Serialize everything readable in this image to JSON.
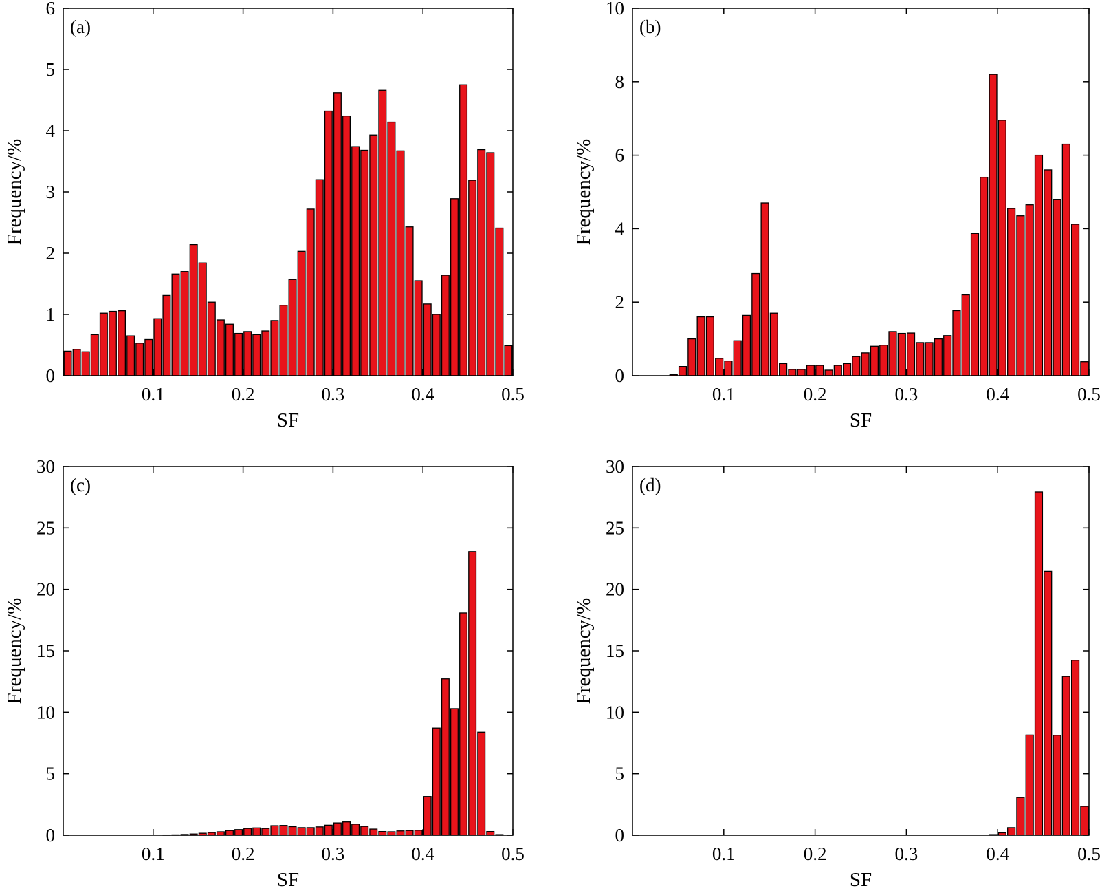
{
  "colors": {
    "bar_fill": "#e8141b",
    "bar_stroke": "#000000",
    "frame": "#000000"
  },
  "chart_data": [
    {
      "type": "bar",
      "panel_label": "(a)",
      "xlabel": "SF",
      "ylabel": "Frequency/%",
      "xlim": [
        0,
        0.5
      ],
      "ylim": [
        0,
        6
      ],
      "xticks": [
        0.1,
        0.2,
        0.3,
        0.4,
        0.5
      ],
      "xtick_labels": [
        "0.1",
        "0.2",
        "0.3",
        "0.4",
        "0.5"
      ],
      "yticks": [
        0,
        1,
        2,
        3,
        4,
        5,
        6
      ],
      "ytick_labels": [
        "0",
        "1",
        "2",
        "3",
        "4",
        "5",
        "6"
      ],
      "bin_width": 0.01,
      "x": [
        0.005,
        0.015,
        0.025,
        0.035,
        0.045,
        0.055,
        0.065,
        0.075,
        0.085,
        0.095,
        0.105,
        0.115,
        0.125,
        0.135,
        0.145,
        0.155,
        0.165,
        0.175,
        0.185,
        0.195,
        0.205,
        0.215,
        0.225,
        0.235,
        0.245,
        0.255,
        0.265,
        0.275,
        0.285,
        0.295,
        0.305,
        0.315,
        0.325,
        0.335,
        0.345,
        0.355,
        0.365,
        0.375,
        0.385,
        0.395,
        0.405,
        0.415,
        0.425,
        0.435,
        0.445,
        0.455,
        0.465,
        0.475,
        0.485,
        0.495
      ],
      "values": [
        0.4,
        0.43,
        0.39,
        0.67,
        1.02,
        1.05,
        1.06,
        0.65,
        0.53,
        0.59,
        0.93,
        1.31,
        1.66,
        1.7,
        2.14,
        1.84,
        1.2,
        0.91,
        0.84,
        0.69,
        0.72,
        0.67,
        0.73,
        0.9,
        1.15,
        1.57,
        2.03,
        2.72,
        3.2,
        4.32,
        4.62,
        4.24,
        3.74,
        3.68,
        3.93,
        4.66,
        4.14,
        3.67,
        2.43,
        1.55,
        1.17,
        1.0,
        1.64,
        2.89,
        4.75,
        3.19,
        3.69,
        3.64,
        2.41,
        0.49
      ]
    },
    {
      "type": "bar",
      "panel_label": "(b)",
      "xlabel": "SF",
      "ylabel": "Frequency/%",
      "xlim": [
        0,
        0.5
      ],
      "ylim": [
        0,
        10
      ],
      "xticks": [
        0.1,
        0.2,
        0.3,
        0.4,
        0.5
      ],
      "xtick_labels": [
        "0.1",
        "0.2",
        "0.3",
        "0.4",
        "0.5"
      ],
      "yticks": [
        0,
        2,
        4,
        6,
        8,
        10
      ],
      "ytick_labels": [
        "0",
        "2",
        "4",
        "6",
        "8",
        "10"
      ],
      "bin_width": 0.01,
      "x": [
        0.045,
        0.055,
        0.065,
        0.075,
        0.085,
        0.095,
        0.105,
        0.115,
        0.125,
        0.135,
        0.145,
        0.155,
        0.165,
        0.175,
        0.185,
        0.195,
        0.205,
        0.215,
        0.225,
        0.235,
        0.245,
        0.255,
        0.265,
        0.275,
        0.285,
        0.295,
        0.305,
        0.315,
        0.325,
        0.335,
        0.345,
        0.355,
        0.365,
        0.375,
        0.385,
        0.395,
        0.405,
        0.415,
        0.425,
        0.435,
        0.445,
        0.455,
        0.465,
        0.475,
        0.485,
        0.495
      ],
      "values": [
        0.03,
        0.25,
        1.0,
        1.6,
        1.6,
        0.47,
        0.4,
        0.95,
        1.64,
        2.78,
        4.7,
        1.7,
        0.33,
        0.17,
        0.17,
        0.28,
        0.28,
        0.15,
        0.28,
        0.33,
        0.52,
        0.62,
        0.8,
        0.83,
        1.2,
        1.15,
        1.16,
        0.9,
        0.9,
        1.0,
        1.09,
        1.77,
        2.2,
        3.87,
        5.4,
        8.2,
        6.95,
        4.55,
        4.35,
        4.65,
        6.0,
        5.6,
        4.8,
        6.3,
        4.12,
        0.38
      ]
    },
    {
      "type": "bar",
      "panel_label": "(c)",
      "xlabel": "SF",
      "ylabel": "Frequency/%",
      "xlim": [
        0,
        0.5
      ],
      "ylim": [
        0,
        30
      ],
      "xticks": [
        0.1,
        0.2,
        0.3,
        0.4,
        0.5
      ],
      "xtick_labels": [
        "0.1",
        "0.2",
        "0.3",
        "0.4",
        "0.5"
      ],
      "yticks": [
        0,
        5,
        10,
        15,
        20,
        25,
        30
      ],
      "ytick_labels": [
        "0",
        "5",
        "10",
        "15",
        "20",
        "25",
        "30"
      ],
      "bin_width": 0.01,
      "x": [
        0.115,
        0.125,
        0.135,
        0.145,
        0.155,
        0.165,
        0.175,
        0.185,
        0.195,
        0.205,
        0.215,
        0.225,
        0.235,
        0.245,
        0.255,
        0.265,
        0.275,
        0.285,
        0.295,
        0.305,
        0.315,
        0.325,
        0.335,
        0.345,
        0.355,
        0.365,
        0.375,
        0.385,
        0.395,
        0.405,
        0.415,
        0.425,
        0.435,
        0.445,
        0.455,
        0.465,
        0.475,
        0.485
      ],
      "values": [
        0.02,
        0.03,
        0.06,
        0.1,
        0.16,
        0.22,
        0.28,
        0.38,
        0.46,
        0.55,
        0.6,
        0.55,
        0.78,
        0.8,
        0.7,
        0.62,
        0.62,
        0.68,
        0.82,
        1.0,
        1.08,
        0.9,
        0.72,
        0.5,
        0.3,
        0.28,
        0.35,
        0.38,
        0.4,
        3.15,
        8.72,
        12.72,
        10.3,
        18.08,
        23.07,
        8.38,
        0.3,
        0.05
      ]
    },
    {
      "type": "bar",
      "panel_label": "(d)",
      "xlabel": "SF",
      "ylabel": "Frequency/%",
      "xlim": [
        0,
        0.5
      ],
      "ylim": [
        0,
        30
      ],
      "xticks": [
        0.1,
        0.2,
        0.3,
        0.4,
        0.5
      ],
      "xtick_labels": [
        "0.1",
        "0.2",
        "0.3",
        "0.4",
        "0.5"
      ],
      "yticks": [
        0,
        5,
        10,
        15,
        20,
        25,
        30
      ],
      "ytick_labels": [
        "0",
        "5",
        "10",
        "15",
        "20",
        "25",
        "30"
      ],
      "bin_width": 0.01,
      "x": [
        0.395,
        0.405,
        0.415,
        0.425,
        0.435,
        0.445,
        0.455,
        0.465,
        0.475,
        0.485,
        0.495
      ],
      "values": [
        0.05,
        0.2,
        0.62,
        3.07,
        8.15,
        27.93,
        21.47,
        8.13,
        12.92,
        14.23,
        2.35
      ]
    }
  ]
}
